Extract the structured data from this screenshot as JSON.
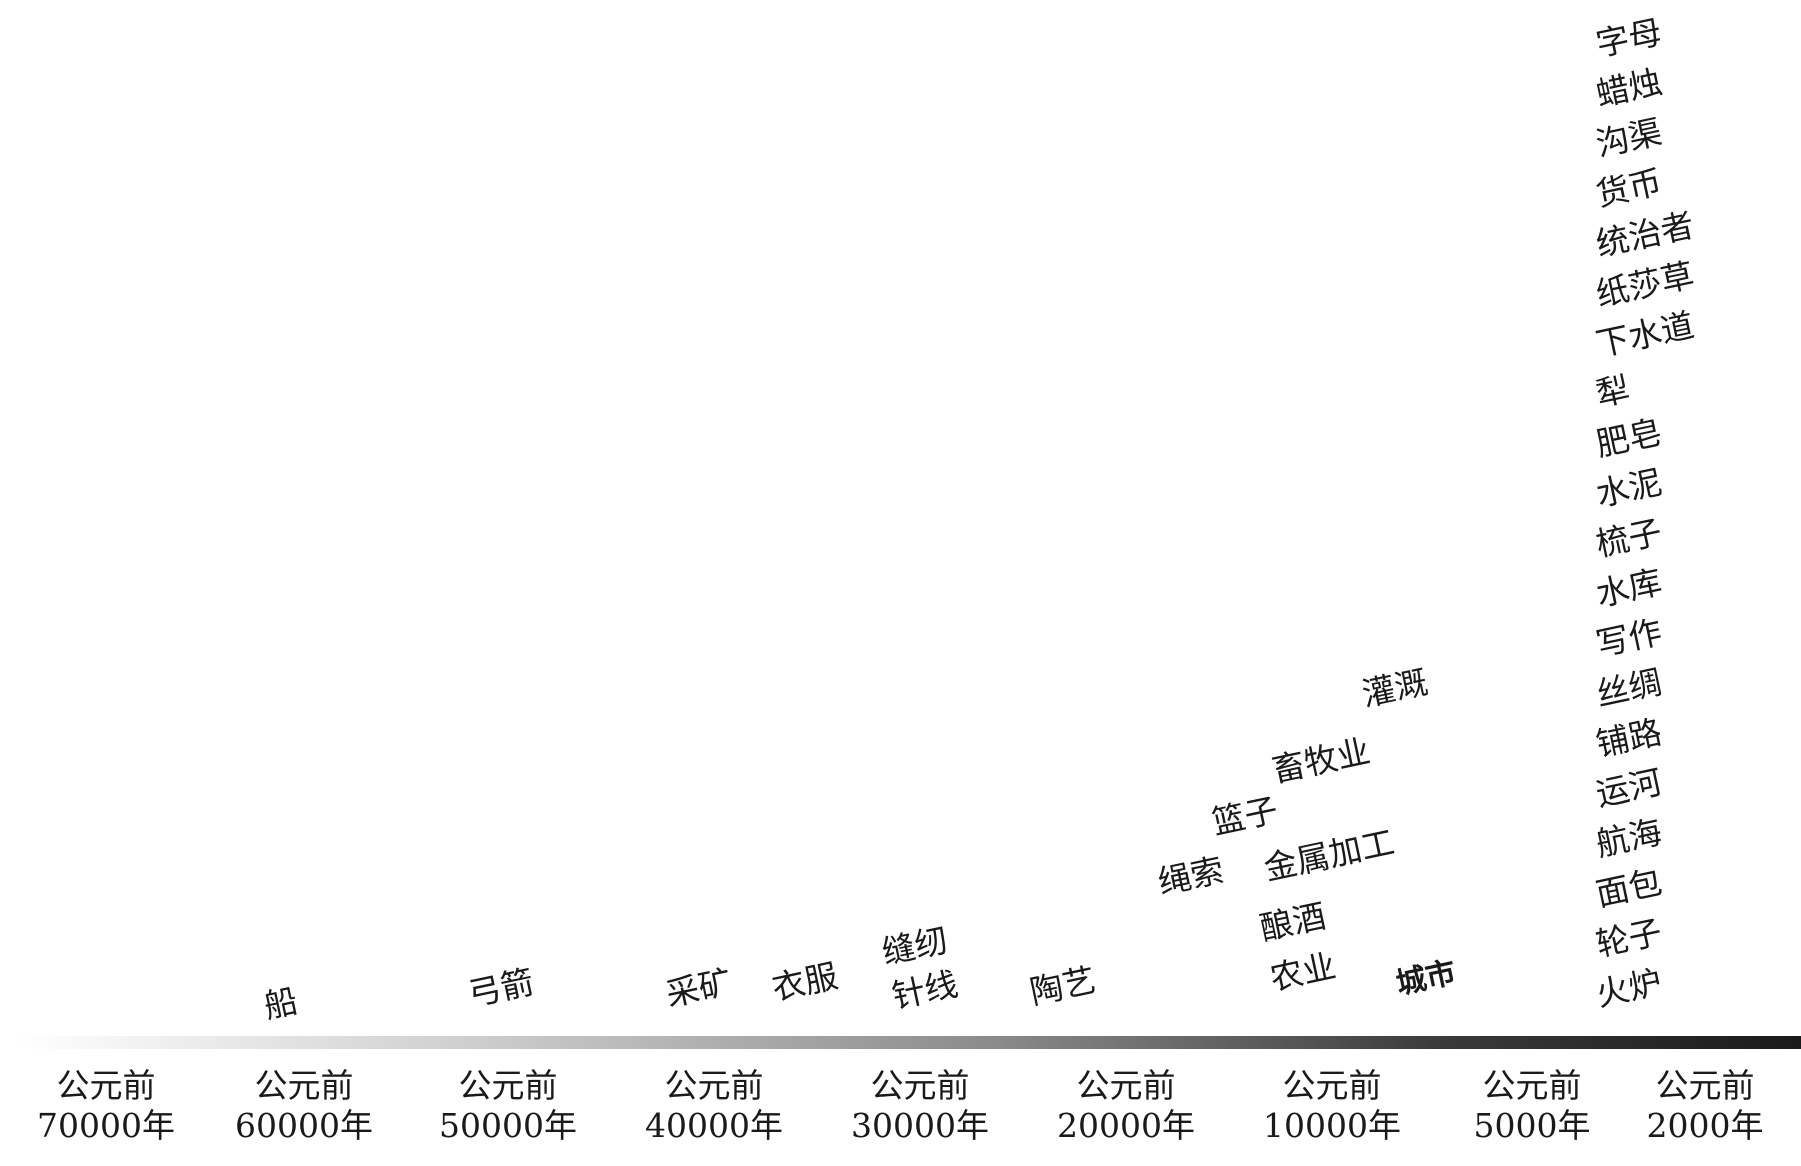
{
  "timeline": {
    "eras": [
      {
        "line1": "公元前",
        "line2": "70000年"
      },
      {
        "line1": "公元前",
        "line2": "60000年"
      },
      {
        "line1": "公元前",
        "line2": "50000年"
      },
      {
        "line1": "公元前",
        "line2": "40000年"
      },
      {
        "line1": "公元前",
        "line2": "30000年"
      },
      {
        "line1": "公元前",
        "line2": "20000年"
      },
      {
        "line1": "公元前",
        "line2": "10000年"
      },
      {
        "line1": "公元前",
        "line2": "5000年"
      },
      {
        "line1": "公元前",
        "line2": "2000年"
      }
    ]
  },
  "inventions": {
    "ship": "船",
    "bow_arrow": "弓箭",
    "mining": "采矿",
    "clothing": "衣服",
    "sewing": "缝纫",
    "needle_thread": "针线",
    "pottery": "陶艺",
    "rope": "绳索",
    "basket": "篮子",
    "husbandry": "畜牧业",
    "irrigation": "灌溉",
    "metalwork": "金属加工",
    "brewing": "酿酒",
    "agriculture": "农业",
    "city": "城市",
    "stack_2000": [
      "字母",
      "蜡烛",
      "沟渠",
      "货币",
      "统治者",
      "纸莎草",
      "下水道",
      "犁",
      "肥皂",
      "水泥",
      "梳子",
      "水库",
      "写作",
      "丝绸",
      "铺路",
      "运河",
      "航海",
      "面包",
      "轮子",
      "火炉"
    ]
  }
}
